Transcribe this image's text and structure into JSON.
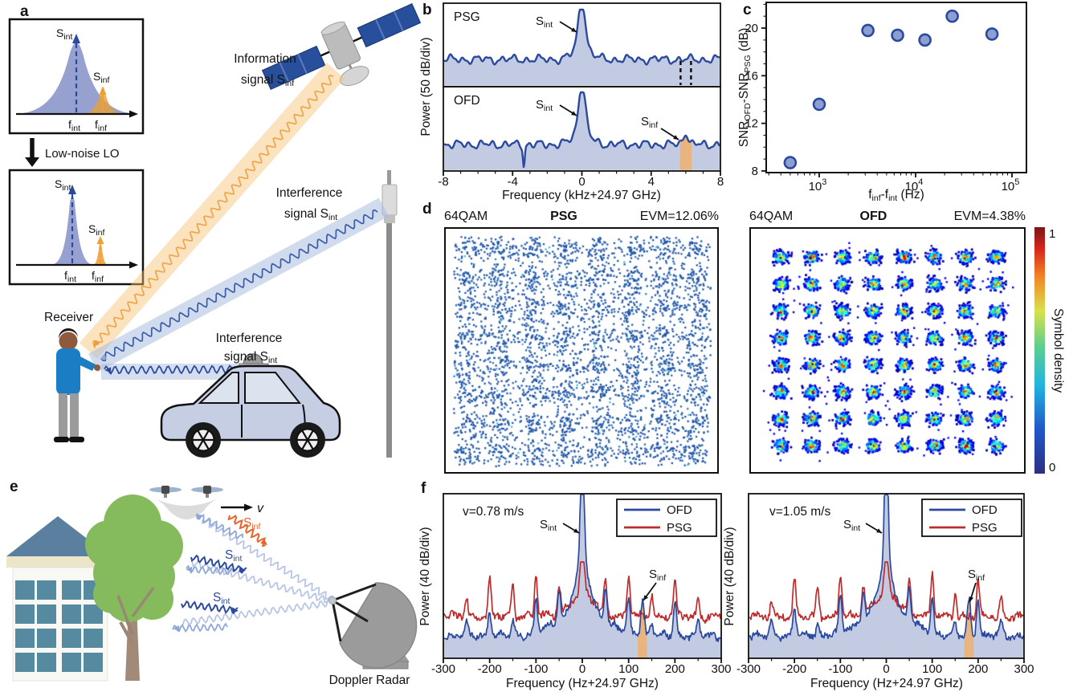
{
  "panels": {
    "a": {
      "label": "a",
      "inset_top": {
        "s_peak": "S",
        "s_peak_sub": "int",
        "i_peak": "S",
        "i_peak_sub": "inf",
        "f1": "f",
        "f1_sub": "int",
        "f2": "f",
        "f2_sub": "inf"
      },
      "lo_label": "Low-noise LO",
      "inset_bottom": {
        "s_peak": "S",
        "s_peak_sub": "int",
        "i_peak": "S",
        "i_peak_sub": "inf",
        "f1": "f",
        "f1_sub": "int",
        "f2": "f",
        "f2_sub": "inf"
      },
      "info_line1": "Information",
      "info_line2": "signal S",
      "info_sub": "inf",
      "tower_line1": "Interference",
      "tower_line2": "signal S",
      "tower_sub": "int",
      "car_line1": "Interference",
      "car_line2": "signal S",
      "car_sub": "int",
      "receiver": "Receiver"
    },
    "b": {
      "label": "b",
      "psg": "PSG",
      "ofd": "OFD",
      "sint": "S",
      "sint_sub": "int",
      "sinf": "S",
      "sinf_sub": "inf",
      "ylabel": "Power (50 dB/div)",
      "xlabel": "Frequency (kHz+24.97 GHz)"
    },
    "c": {
      "label": "c",
      "ylabel_p1": "SNR",
      "ylabel_s1": "OFD",
      "ylabel_p2": "-SNR",
      "ylabel_s2": "PSG",
      "ylabel_p3": " (dB)",
      "xlabel_p1": "f",
      "xlabel_s1": "inf",
      "xlabel_p2": "-f",
      "xlabel_s2": "int",
      "xlabel_p3": " (Hz)"
    },
    "d": {
      "label": "d",
      "left": {
        "mod": "64QAM",
        "method": "PSG",
        "evm": "EVM=12.06%"
      },
      "right": {
        "mod": "64QAM",
        "method": "OFD",
        "evm": "EVM=4.38%"
      },
      "colorbar": {
        "max": "1",
        "min": "0",
        "label": "Symbol density"
      }
    },
    "e": {
      "label": "e",
      "sinf": "S",
      "sinf_sub": "inf",
      "sint1": "S",
      "sint1_sub": "int",
      "sint2": "S",
      "sint2_sub": "int",
      "v": "v",
      "radar": "Doppler Radar"
    },
    "f": {
      "label": "f",
      "left_v": "v=0.78 m/s",
      "right_v": "v=1.05 m/s",
      "legend": [
        "OFD",
        "PSG"
      ],
      "sint": "S",
      "sint_sub": "int",
      "sinf": "S",
      "sinf_sub": "inf",
      "ylabel": "Power (40 dB/div)",
      "xlabel": "Frequency (Hz+24.97 GHz)"
    }
  },
  "colors": {
    "line_blue": "#2b4a9f",
    "fill_blue": "#c3cbe3",
    "orange": "#efa54a",
    "beam_orange": "#f6c071",
    "beam_blue": "#a9bede",
    "highlight_tan": "#e9b47e",
    "red": "#bf2c2c",
    "accent_orange_text": "#e8622a",
    "point_fill": "#8d9fd0",
    "wave_lightblue": "#b7c5e6",
    "wave_arrowblue": "#8fa7d8"
  },
  "chart_data": [
    {
      "id": "b",
      "type": "line",
      "subplots": [
        {
          "trace": "PSG",
          "peaks": [
            {
              "label": "Sint",
              "x_khz": 0
            }
          ],
          "dashed_marker_x_khz": 6
        },
        {
          "trace": "OFD",
          "peaks": [
            {
              "label": "Sint",
              "x_khz": 0
            },
            {
              "label": "Sinf",
              "x_khz": 6,
              "highlighted": true
            }
          ]
        }
      ],
      "xlabel": "Frequency (kHz+24.97 GHz)",
      "ylabel": "Power (50 dB/div)",
      "xticks": [
        -8,
        -4,
        0,
        4,
        8
      ],
      "xlim": [
        -8,
        8
      ],
      "y_scale": "50 dB/div"
    },
    {
      "id": "c",
      "type": "scatter",
      "x_hz": [
        500,
        1000,
        3200,
        6500,
        12500,
        24000,
        62000
      ],
      "y_db": [
        8.7,
        13.6,
        19.8,
        19.4,
        19.0,
        21.0,
        19.5
      ],
      "xlabel": "finf-fint (Hz)",
      "ylabel": "SNROFD-SNRPSG (dB)",
      "xscale": "log",
      "xtick_exponents": [
        3,
        4,
        5
      ],
      "yticks": [
        8,
        12,
        16,
        20
      ],
      "ylim": [
        7.9,
        22.2
      ],
      "xlim_hz": [
        275,
        140000
      ]
    },
    {
      "id": "d",
      "type": "heatmap",
      "panels": [
        {
          "modulation": "64QAM",
          "source": "PSG",
          "evm_percent": 12.06,
          "pattern": "dispersed"
        },
        {
          "modulation": "64QAM",
          "source": "OFD",
          "evm_percent": 4.38,
          "pattern": "8x8-clusters"
        }
      ],
      "colorbar": {
        "label": "Symbol density",
        "min": 0,
        "max": 1
      }
    },
    {
      "id": "f",
      "type": "line",
      "panels": [
        {
          "velocity_mps": 0.78,
          "sinf_peak_hz": 130
        },
        {
          "velocity_mps": 1.05,
          "sinf_peak_hz": 180
        }
      ],
      "series": [
        "OFD",
        "PSG"
      ],
      "sint_peak_hz": 0,
      "spur_spacing_hz": 50,
      "xlabel": "Frequency (Hz+24.97 GHz)",
      "ylabel": "Power (40 dB/div)",
      "xticks": [
        -300,
        -200,
        -100,
        0,
        100,
        200,
        300
      ],
      "xlim": [
        -300,
        300
      ],
      "y_scale": "40 dB/div"
    }
  ]
}
